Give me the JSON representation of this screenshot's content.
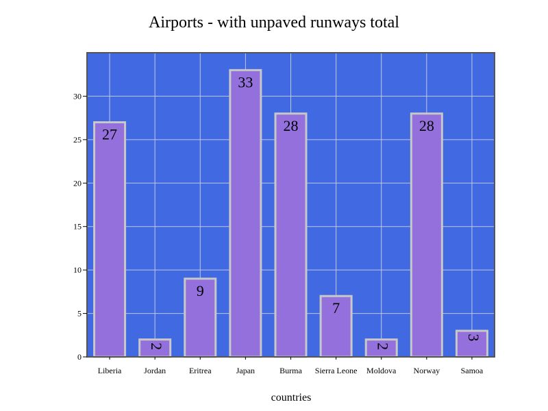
{
  "chart_data": {
    "type": "bar",
    "title": "Airports - with unpaved runways total",
    "xlabel": "countries",
    "ylabel": "",
    "categories": [
      "Liberia",
      "Jordan",
      "Eritrea",
      "Japan",
      "Burma",
      "Sierra Leone",
      "Moldova",
      "Norway",
      "Samoa"
    ],
    "values": [
      27,
      2,
      9,
      33,
      28,
      7,
      2,
      28,
      3
    ],
    "data_labels": [
      "27",
      "2",
      "9",
      "33",
      "28",
      "7",
      "2",
      "28",
      "3"
    ],
    "ylim": [
      0,
      35
    ],
    "yticks": [
      0,
      5,
      10,
      15,
      20,
      25,
      30
    ],
    "ytick_labels": [
      "0",
      "5",
      "10",
      "15",
      "20",
      "25",
      "30"
    ],
    "grid": true,
    "legend": "none",
    "colors": {
      "plot_background": "#4169e1",
      "bar_fill": "#9370db",
      "bar_border": "#c8c8c8",
      "grid": "#c0c8e8",
      "frame": "#555555"
    }
  }
}
